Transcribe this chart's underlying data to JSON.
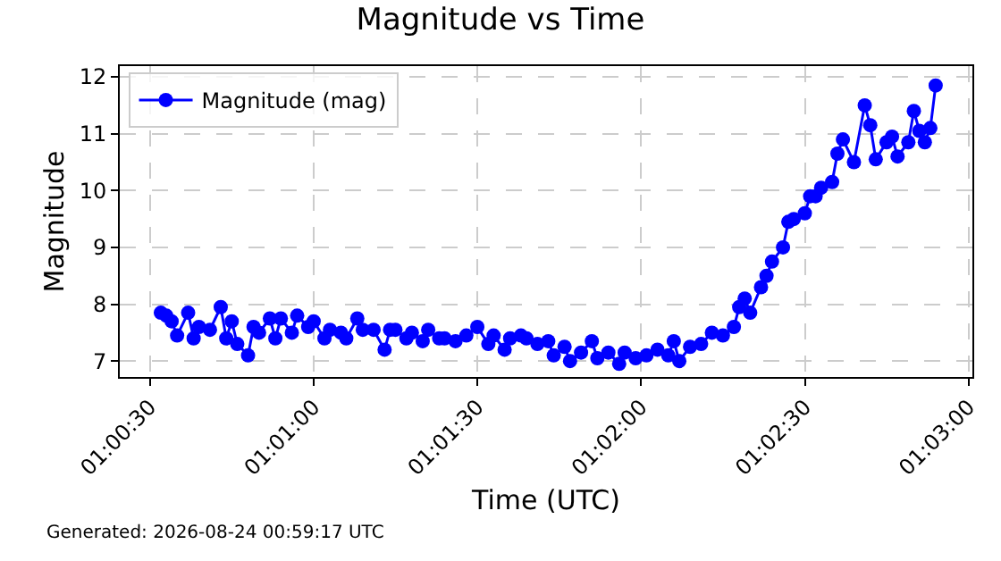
{
  "chart_data": {
    "type": "line",
    "title": "Magnitude vs Time",
    "xlabel": "Time (UTC)",
    "ylabel": "Magnitude",
    "annotations": [
      "Generated: 2026-08-24 00:59:17 UTC"
    ],
    "x": [
      1.00889,
      1.00917,
      1.00944,
      1.00972,
      1.01028,
      1.01056,
      1.01083,
      1.01139,
      1.01194,
      1.01222,
      1.0125,
      1.01278,
      1.01333,
      1.01361,
      1.01389,
      1.01444,
      1.01472,
      1.015,
      1.01556,
      1.01583,
      1.01639,
      1.01667,
      1.01722,
      1.0175,
      1.01806,
      1.01833,
      1.01889,
      1.01917,
      1.01972,
      1.02028,
      1.02056,
      1.02083,
      1.02139,
      1.02167,
      1.02222,
      1.0225,
      1.02306,
      1.02333,
      1.02389,
      1.02444,
      1.025,
      1.02556,
      1.02583,
      1.02639,
      1.02667,
      1.02722,
      1.0275,
      1.02806,
      1.02861,
      1.02889,
      1.02944,
      1.02972,
      1.03028,
      1.03083,
      1.03111,
      1.03167,
      1.03222,
      1.0325,
      1.03306,
      1.03361,
      1.03417,
      1.03472,
      1.035,
      1.03528,
      1.03583,
      1.03639,
      1.03694,
      1.0375,
      1.03806,
      1.03833,
      1.03861,
      1.03889,
      1.03944,
      1.03972,
      1.04,
      1.04056,
      1.04083,
      1.04111,
      1.04167,
      1.04194,
      1.04222,
      1.0425,
      1.04306,
      1.04333,
      1.04361,
      1.04417,
      1.04472,
      1.045,
      1.04528,
      1.04583,
      1.04611,
      1.04639,
      1.04694,
      1.04722,
      1.0475,
      1.04778,
      1.04806,
      1.04833
    ],
    "series": [
      {
        "name": "Magnitude (mag)",
        "color": "#0000ff",
        "values": [
          7.85,
          7.8,
          7.7,
          7.45,
          7.85,
          7.4,
          7.6,
          7.55,
          7.95,
          7.4,
          7.7,
          7.3,
          7.1,
          7.6,
          7.5,
          7.75,
          7.4,
          7.75,
          7.5,
          7.8,
          7.6,
          7.7,
          7.4,
          7.55,
          7.5,
          7.4,
          7.75,
          7.55,
          7.55,
          7.2,
          7.55,
          7.55,
          7.4,
          7.5,
          7.35,
          7.55,
          7.4,
          7.4,
          7.35,
          7.45,
          7.6,
          7.3,
          7.45,
          7.2,
          7.4,
          7.45,
          7.4,
          7.3,
          7.35,
          7.1,
          7.25,
          7.0,
          7.15,
          7.35,
          7.05,
          7.15,
          6.95,
          7.15,
          7.05,
          7.1,
          7.2,
          7.1,
          7.35,
          7.0,
          7.25,
          7.3,
          7.5,
          7.45,
          7.6,
          7.95,
          8.1,
          7.85,
          8.3,
          8.5,
          8.75,
          9.0,
          9.45,
          9.5,
          9.6,
          9.9,
          9.9,
          10.05,
          10.15,
          10.65,
          10.9,
          10.5,
          11.5,
          11.15,
          10.55,
          10.85,
          10.95,
          10.6,
          10.85,
          11.4,
          11.05,
          10.85,
          11.1,
          11.85
        ]
      }
    ],
    "xlim": [
      1.0068,
      1.0502
    ],
    "xticks": [
      {
        "value": 1.00833,
        "label": "01:00:30"
      },
      {
        "value": 1.01667,
        "label": "01:01:00"
      },
      {
        "value": 1.025,
        "label": "01:01:30"
      },
      {
        "value": 1.03333,
        "label": "01:02:00"
      },
      {
        "value": 1.04167,
        "label": "01:02:30"
      },
      {
        "value": 1.05,
        "label": "01:03:00"
      }
    ],
    "ylim": [
      6.72,
      12.19
    ],
    "yticks": [
      7,
      8,
      9,
      10,
      11,
      12
    ],
    "grid": true,
    "legend": "top left",
    "marker": "circle",
    "line_style": "solid"
  }
}
